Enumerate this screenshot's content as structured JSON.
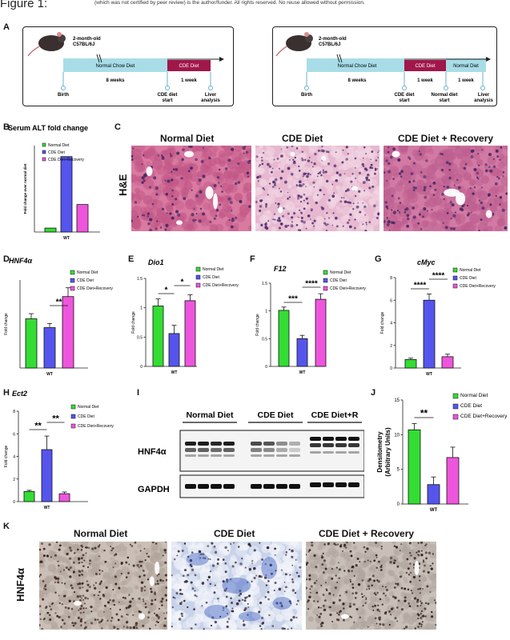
{
  "header": {
    "figure_label": "Figure 1:",
    "note": "(which was not certified by peer review) is the author/funder. All rights reserved. No reuse allowed without permission."
  },
  "panel_labels": [
    "A",
    "B",
    "C",
    "D",
    "E",
    "F",
    "G",
    "H",
    "I",
    "J",
    "K"
  ],
  "timeline_left": {
    "mouse_label": "2-month-old\nC57BL/6J",
    "bar1": "Normal Chow Diet",
    "bar1_sub": "8 weeks",
    "bar2": "CDE Diet",
    "bar2_sub": "1 week",
    "points": [
      "Birth",
      "CDE diet\nstart",
      "Liver\nanalysis"
    ]
  },
  "timeline_right": {
    "mouse_label": "2-month-old\nC57BL/6J",
    "bar1": "Normal Chow Diet",
    "bar1_sub": "8 weeks",
    "bar2": "CDE Diet",
    "bar2_sub": "1 week",
    "bar3": "Normal Diet",
    "bar3_sub": "1 week",
    "points": [
      "Birth",
      "CDE diet\nstart",
      "Normal diet\nstart",
      "Liver\nanalysis"
    ]
  },
  "histology_he": {
    "row_label": "H&E",
    "columns": [
      "Normal Diet",
      "CDE Diet",
      "CDE Diet + Recovery"
    ]
  },
  "histology_hnf4a": {
    "row_label": "HNF4α",
    "columns": [
      "Normal Diet",
      "CDE Diet",
      "CDE Diet + Recovery"
    ]
  },
  "western": {
    "groups": [
      "Normal Diet",
      "CDE Diet",
      "CDE Diet+R"
    ],
    "bands": [
      "HNF4α",
      "GAPDH"
    ]
  },
  "colors": {
    "normal": "#33dd33",
    "cde": "#5555ee",
    "recovery": "#ee55dd",
    "timeline_bar": "#a8dde8",
    "cde_bar": "#a0174a",
    "he_pink": "#d7739a",
    "ihc_bg": "#cfc6bd"
  },
  "chart_data": [
    {
      "id": "B",
      "type": "bar",
      "title": "Serum ALT fold change",
      "ylabel": "Fold change over normal diet",
      "xlabel": "WT",
      "categories": [
        "Normal Diet",
        "CDE Diet",
        "CDE Diet+Recovery"
      ],
      "values": [
        0.5,
        9.6,
        3.5
      ],
      "errors": [
        0,
        0,
        0
      ],
      "ylim": [
        0,
        11
      ],
      "legend": [
        "Normal Diet",
        "CDE Diet",
        "CDE Diet+Recovery"
      ],
      "legend_position": "top-right",
      "significance": []
    },
    {
      "id": "D",
      "type": "bar",
      "title": "HNF4α",
      "ylabel": "Fold change",
      "xlabel": "WT",
      "categories": [
        "Normal Diet",
        "CDE Diet",
        "CDE Diet+Recovery"
      ],
      "values": [
        0.95,
        0.78,
        1.38
      ],
      "errors": [
        0.1,
        0.08,
        0.17
      ],
      "ylim": [
        0,
        1.7
      ],
      "legend": [
        "Normal Diet",
        "CDE Diet",
        "CDE Diet+Recovery"
      ],
      "legend_position": "top-right",
      "significance": [
        {
          "from": 1,
          "to": 2,
          "label": "**"
        }
      ]
    },
    {
      "id": "E",
      "type": "bar",
      "title": "Dio1",
      "ylabel": "Fold change",
      "xlabel": "WT",
      "categories": [
        "Normal Diet",
        "CDE Diet",
        "CDE Diet+Recovery"
      ],
      "values": [
        1.03,
        0.56,
        1.12
      ],
      "errors": [
        0.12,
        0.14,
        0.1
      ],
      "yticks": [
        0.0,
        0.5,
        1.0,
        1.5
      ],
      "ylim": [
        0,
        1.5
      ],
      "legend": [
        "Normal Diet",
        "CDE Diet",
        "CDE Diet+Recovery"
      ],
      "legend_position": "top-right",
      "significance": [
        {
          "from": 0,
          "to": 1,
          "label": "*"
        },
        {
          "from": 1,
          "to": 2,
          "label": "*"
        }
      ]
    },
    {
      "id": "F",
      "type": "bar",
      "title": "F12",
      "ylabel": "Fold change",
      "xlabel": "WT",
      "categories": [
        "Normal Diet",
        "CDE Diet",
        "CDE Diet+Recovery"
      ],
      "values": [
        1.01,
        0.5,
        1.21
      ],
      "errors": [
        0.06,
        0.06,
        0.1
      ],
      "yticks": [
        0.0,
        0.5,
        1.0,
        1.5
      ],
      "ylim": [
        0,
        1.5
      ],
      "legend": [
        "Normal Diet",
        "CDE Diet",
        "CDE Diet+Recovery"
      ],
      "legend_position": "top-right",
      "significance": [
        {
          "from": 0,
          "to": 1,
          "label": "***"
        },
        {
          "from": 1,
          "to": 2,
          "label": "****"
        }
      ]
    },
    {
      "id": "G",
      "type": "bar",
      "title": "cMyc",
      "ylabel": "Fold change",
      "xlabel": "WT",
      "categories": [
        "Normal Diet",
        "CDE Diet",
        "CDE Diet+Recovery"
      ],
      "values": [
        0.75,
        6.0,
        1.0
      ],
      "errors": [
        0.12,
        0.55,
        0.22
      ],
      "yticks": [
        0,
        2,
        4,
        6,
        8
      ],
      "ylim": [
        0,
        8
      ],
      "legend": [
        "Normal Diet",
        "CDE Diet",
        "CDE Diet+Recovery"
      ],
      "legend_position": "top-right",
      "significance": [
        {
          "from": 0,
          "to": 1,
          "label": "****"
        },
        {
          "from": 1,
          "to": 2,
          "label": "****"
        }
      ]
    },
    {
      "id": "H",
      "type": "bar",
      "title": "Ect2",
      "ylabel": "Fold change",
      "xlabel": "WT",
      "categories": [
        "Normal Diet",
        "CDE Diet",
        "CDE Diet+Recovery"
      ],
      "values": [
        0.9,
        4.6,
        0.7
      ],
      "errors": [
        0.1,
        1.2,
        0.15
      ],
      "yticks": [
        0,
        2,
        4,
        6,
        8
      ],
      "ylim": [
        0,
        8
      ],
      "legend": [
        "Normal Diet",
        "CDE Diet",
        "CDE Diet+Recovery"
      ],
      "legend_position": "top-right",
      "significance": [
        {
          "from": 0,
          "to": 1,
          "label": "**"
        },
        {
          "from": 1,
          "to": 2,
          "label": "**"
        }
      ]
    },
    {
      "id": "J",
      "type": "bar",
      "title": "",
      "ylabel": "Densitometry\n(Arbitrary Units)",
      "xlabel": "WT",
      "categories": [
        "Normal Diet",
        "CDE Diet",
        "CDE Diet+Recovery"
      ],
      "values": [
        10.7,
        2.8,
        6.7
      ],
      "errors": [
        0.9,
        1.1,
        1.5
      ],
      "yticks": [
        0,
        5,
        10,
        15
      ],
      "ylim": [
        0,
        15
      ],
      "legend": [
        "Normal Diet",
        "CDE Diet",
        "CDE Diet+Recovery"
      ],
      "legend_position": "top-right",
      "significance": [
        {
          "from": 0,
          "to": 1,
          "label": "**"
        }
      ]
    }
  ]
}
